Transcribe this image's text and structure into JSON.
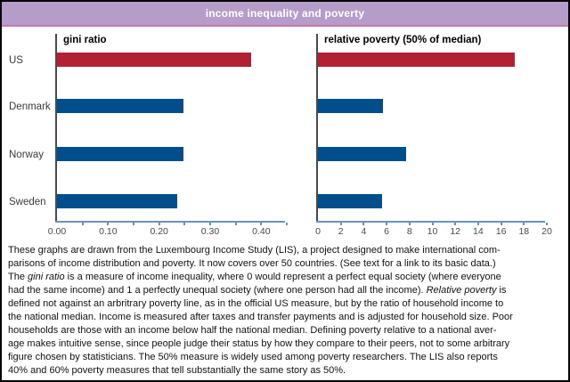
{
  "header": {
    "title": "income inequality and poverty"
  },
  "colors": {
    "header_bg": "#b59cc9",
    "header_edge": "#c678ad",
    "us_bar_red": "#b22033",
    "country_bar_blue": "#004f8c",
    "axis_blue": "#6892c4",
    "y_axis_gray": "#4a4a4a"
  },
  "chart_data": [
    {
      "type": "bar",
      "orientation": "horizontal",
      "title": "gini ratio",
      "categories": [
        "US",
        "Denmark",
        "Norway",
        "Sweden"
      ],
      "values": [
        0.38,
        0.247,
        0.247,
        0.235
      ],
      "xlim": [
        0,
        0.45
      ],
      "tick_step": 0.05,
      "label_values": [
        0,
        0.1,
        0.2,
        0.3,
        0.4
      ],
      "tick_labels": [
        "0.00",
        "0.10",
        "0.20",
        "0.30",
        "0.40"
      ],
      "bar_colors": [
        "#b22033",
        "#004f8c",
        "#004f8c",
        "#004f8c"
      ],
      "grid": false,
      "legend": "none"
    },
    {
      "type": "bar",
      "orientation": "horizontal",
      "title": "relative poverty (50% of median)",
      "categories": [
        "US",
        "Denmark",
        "Norway",
        "Sweden"
      ],
      "values": [
        17.2,
        5.7,
        7.7,
        5.6
      ],
      "xlim": [
        0,
        20
      ],
      "tick_step": 2,
      "label_values": [
        0,
        2,
        4,
        6,
        8,
        10,
        12,
        14,
        16,
        18,
        20
      ],
      "tick_labels": [
        "0",
        "2",
        "4",
        "6",
        "8",
        "10",
        "12",
        "14",
        "16",
        "18",
        "20"
      ],
      "bar_colors": [
        "#b22033",
        "#004f8c",
        "#004f8c",
        "#004f8c"
      ],
      "grid": false,
      "legend": "none"
    }
  ],
  "caption": {
    "lines": [
      [
        {
          "text": "These graphs are drawn from the Luxembourg Income Study (LIS), a project designed to make international com-",
          "italic": false
        }
      ],
      [
        {
          "text": "parisons of income distribution and poverty. It now covers over 50 countries. (See text for a link to its basic data.)",
          "italic": false
        }
      ],
      [
        {
          "text": "The ",
          "italic": false
        },
        {
          "text": "gini ratio",
          "italic": true
        },
        {
          "text": " is a measure of income inequality, where 0 would represent a perfect equal society (where everyone",
          "italic": false
        }
      ],
      [
        {
          "text": "had the same income) and 1 a perfectly unequal society (where one person had all the income). ",
          "italic": false
        },
        {
          "text": "Relative poverty",
          "italic": true
        },
        {
          "text": " is",
          "italic": false
        }
      ],
      [
        {
          "text": "defined not against an arbritrary poverty line, as in the official US measure, but by the ratio of household income to",
          "italic": false
        }
      ],
      [
        {
          "text": "the national median. Income is measured after taxes and transfer payments and is adjusted for household size. Poor",
          "italic": false
        }
      ],
      [
        {
          "text": "households are those with an income below half the national median. Defining poverty relative to a national aver-",
          "italic": false
        }
      ],
      [
        {
          "text": "age makes intuitive sense, since people judge their status by how they compare to their peers, not to some arbitrary",
          "italic": false
        }
      ],
      [
        {
          "text": "figure chosen by statisticians. The 50% measure is widely used among poverty researchers. The LIS also reports",
          "italic": false
        }
      ],
      [
        {
          "text": "40% and 60% poverty measures that tell substantially the same story as 50%.",
          "italic": false
        }
      ]
    ]
  }
}
